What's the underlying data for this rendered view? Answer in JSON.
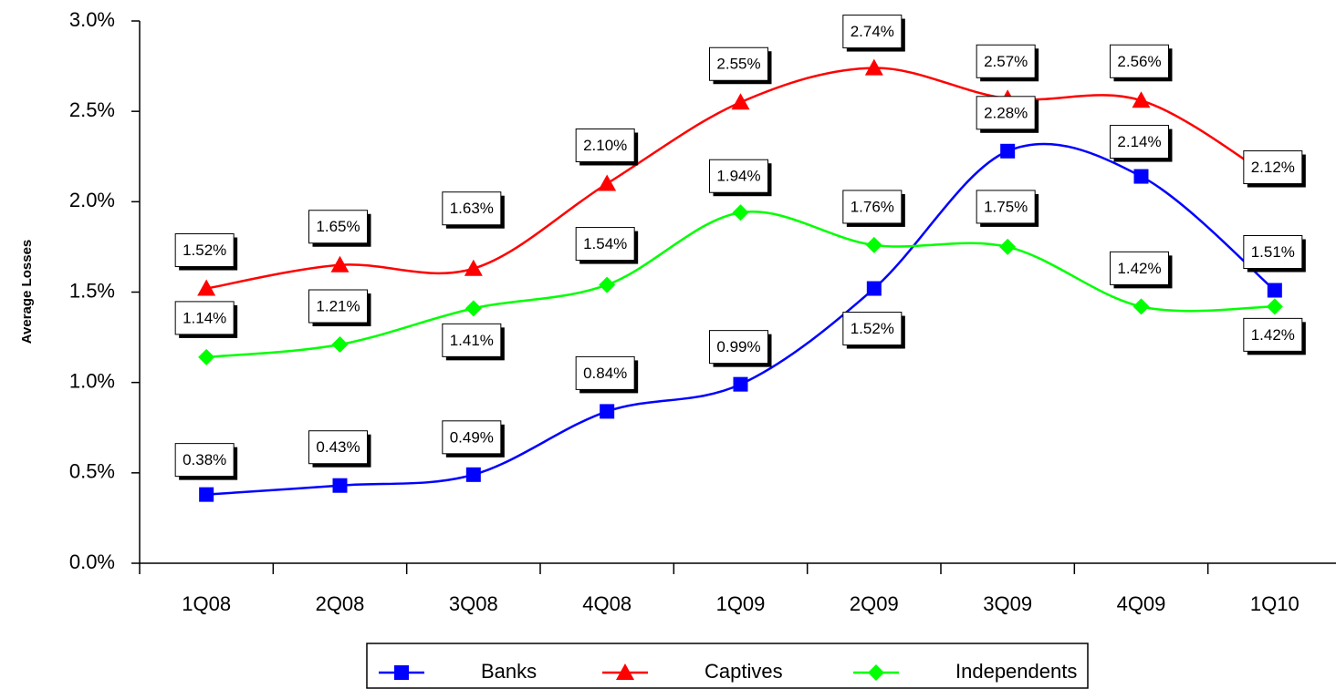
{
  "chart_data": {
    "type": "line",
    "y_label": "Average Losses",
    "categories": [
      "1Q08",
      "2Q08",
      "3Q08",
      "4Q08",
      "1Q09",
      "2Q09",
      "3Q09",
      "4Q09",
      "1Q10"
    ],
    "ylim": [
      0,
      3
    ],
    "yticks": [
      {
        "value": 0,
        "label": "0.0%"
      },
      {
        "value": 0.5,
        "label": "0.5%"
      },
      {
        "value": 1,
        "label": "1.0%"
      },
      {
        "value": 1.5,
        "label": "1.5%"
      },
      {
        "value": 2,
        "label": "2.0%"
      },
      {
        "value": 2.5,
        "label": "2.5%"
      },
      {
        "value": 3,
        "label": "3.0%"
      }
    ],
    "series": [
      {
        "name": "Banks",
        "color": "#0000ff",
        "marker": "square",
        "values": [
          0.38,
          0.43,
          0.49,
          0.84,
          0.99,
          1.52,
          2.28,
          2.14,
          1.51
        ],
        "value_labels": [
          "0.38%",
          "0.43%",
          "0.49%",
          "0.84%",
          "0.99%",
          "1.52%",
          "2.28%",
          "2.14%",
          "1.51%"
        ]
      },
      {
        "name": "Captives",
        "color": "#ff0000",
        "marker": "triangle",
        "values": [
          1.52,
          1.65,
          1.63,
          2.1,
          2.55,
          2.74,
          2.57,
          2.56,
          2.12
        ],
        "value_labels": [
          "1.52%",
          "1.65%",
          "1.63%",
          "2.10%",
          "2.55%",
          "2.74%",
          "2.57%",
          "2.56%",
          "2.12%"
        ]
      },
      {
        "name": "Independents",
        "color": "#00ff00",
        "marker": "diamond",
        "values": [
          1.14,
          1.21,
          1.41,
          1.54,
          1.94,
          1.76,
          1.75,
          1.42,
          1.42
        ],
        "value_labels": [
          "1.14%",
          "1.21%",
          "1.41%",
          "1.54%",
          "1.94%",
          "1.76%",
          "1.75%",
          "1.42%",
          "1.42%"
        ]
      }
    ],
    "legend": "bottom"
  }
}
